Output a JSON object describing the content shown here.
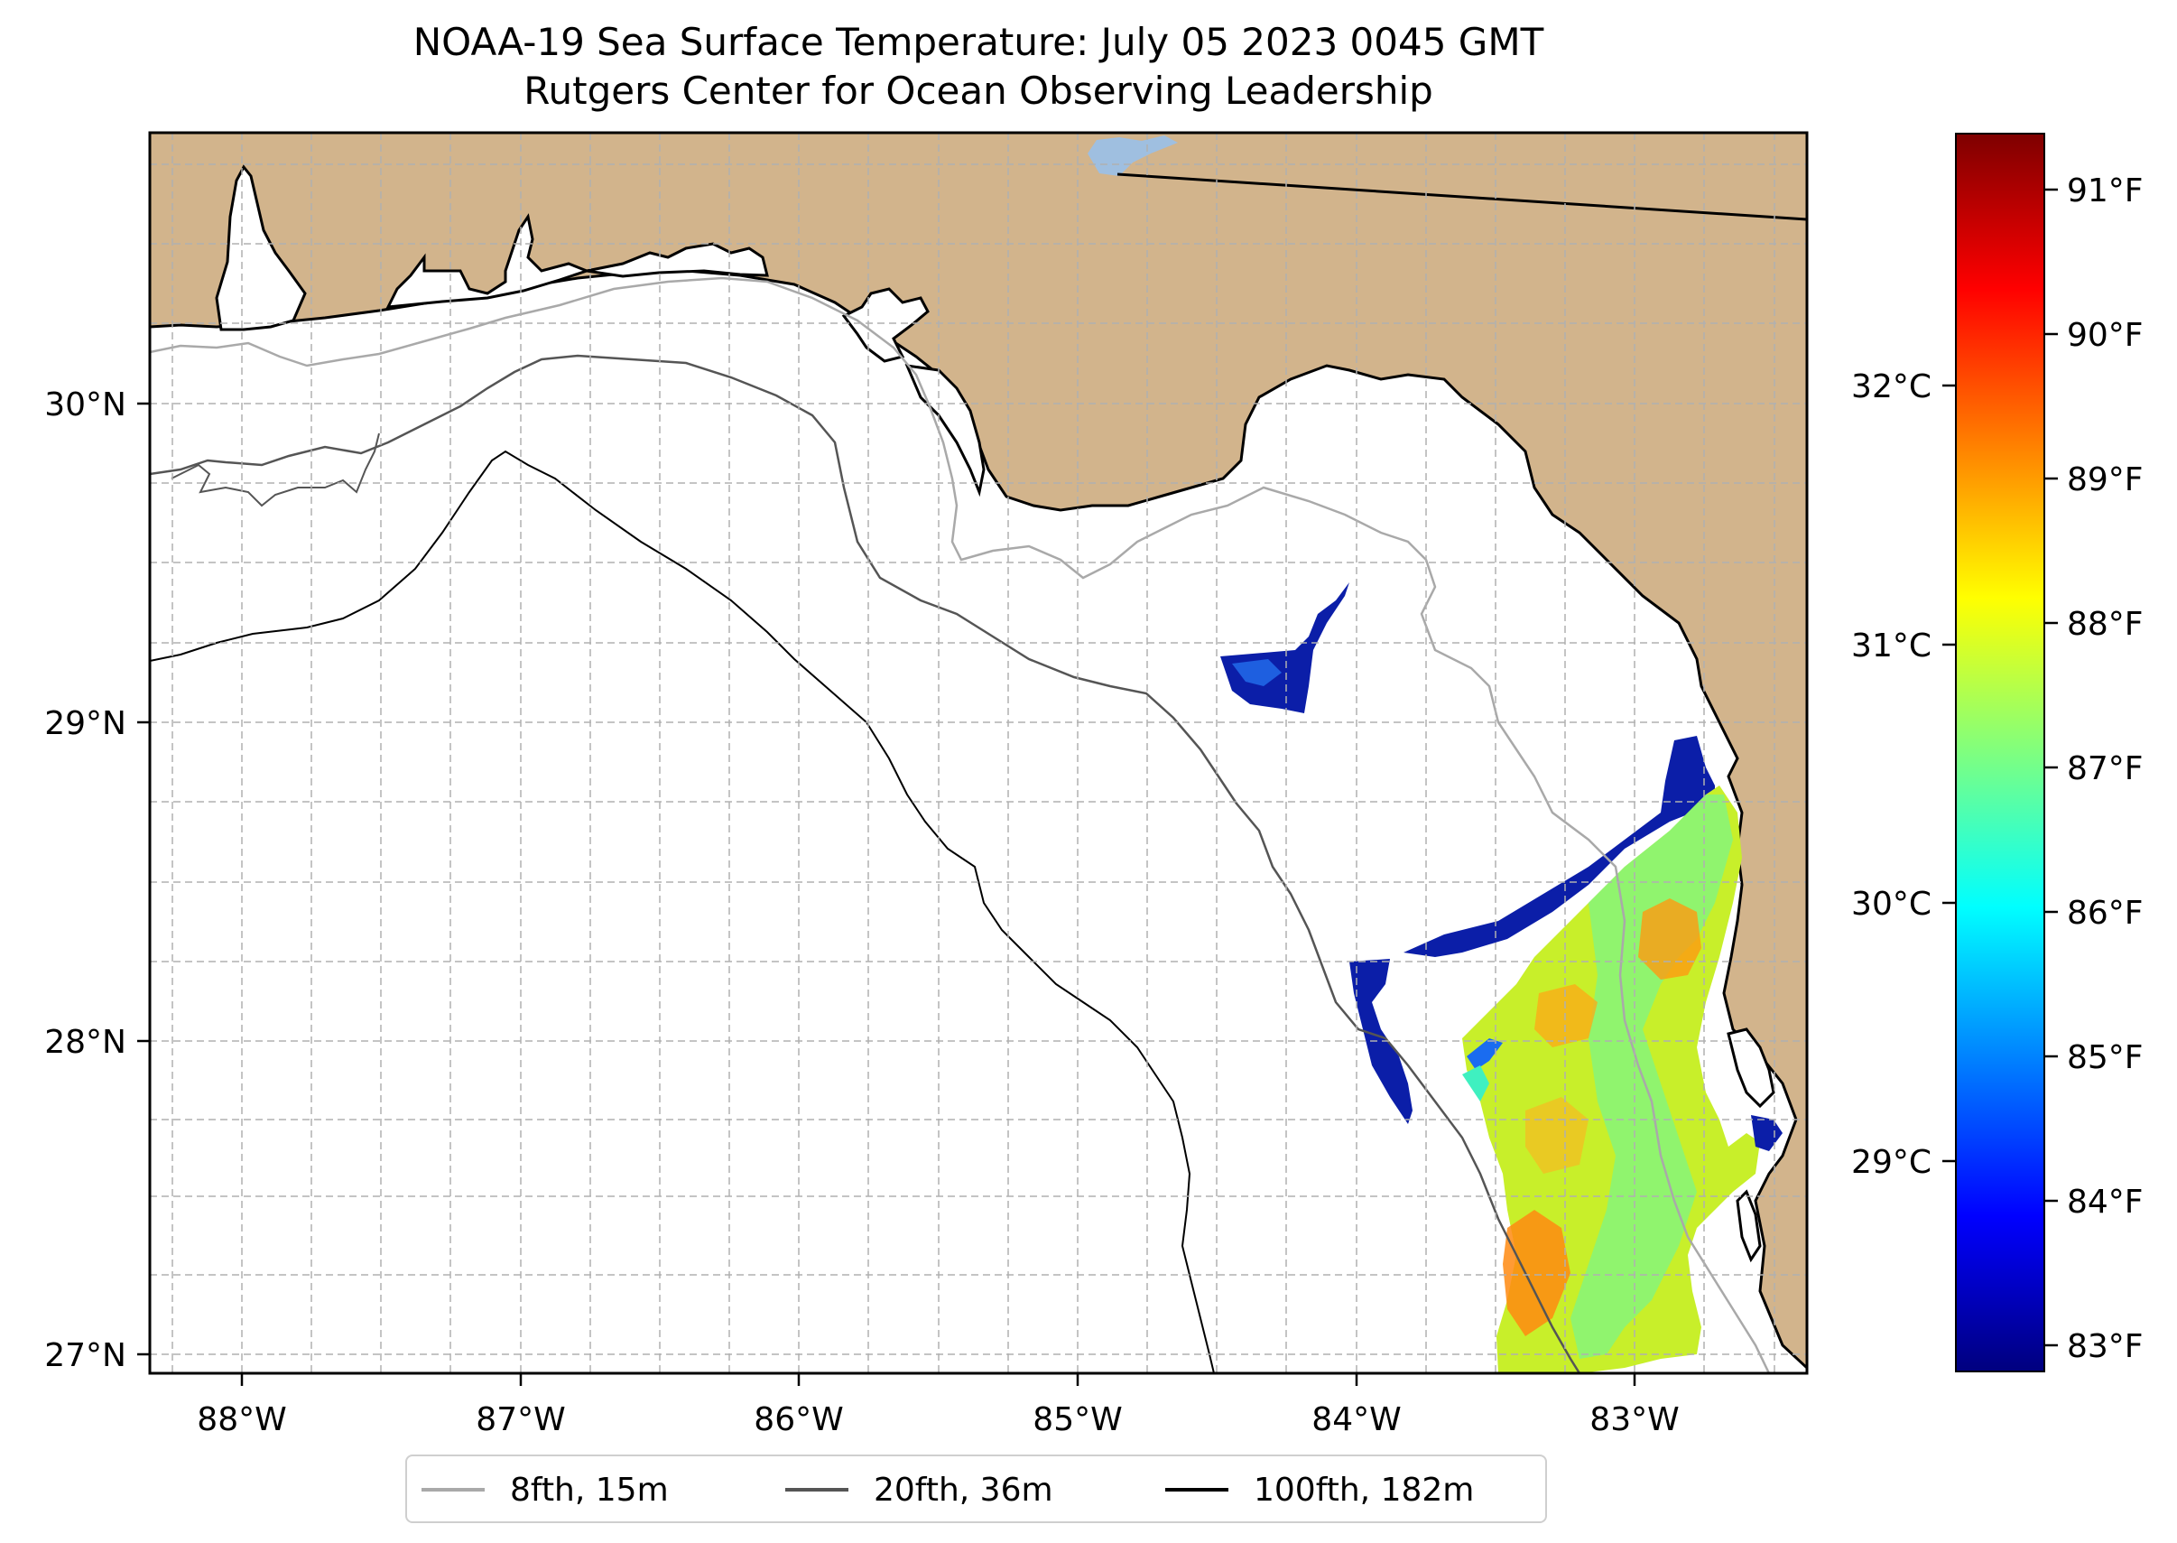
{
  "title": {
    "line1": "NOAA-19 Sea Surface Temperature: July 05 2023 0045 GMT",
    "line2": "Rutgers Center for Ocean Observing Leadership"
  },
  "map": {
    "longitude_ticks": [
      "88°W",
      "87°W",
      "86°W",
      "85°W",
      "84°W",
      "83°W"
    ],
    "latitude_ticks": [
      "30°N",
      "29°N",
      "28°N",
      "27°N"
    ],
    "land_color": "#d2b48c",
    "water_color": "#ffffff",
    "lake_color": "#9fbfe0"
  },
  "legend": {
    "items": [
      {
        "label": "8fth, 15m",
        "color": "#a9a9a9"
      },
      {
        "label": "20fth, 36m",
        "color": "#555555"
      },
      {
        "label": "100fth, 182m",
        "color": "#000000"
      }
    ]
  },
  "colorbar": {
    "colormap": "jet",
    "fahrenheit_ticks": [
      "91°F",
      "90°F",
      "89°F",
      "88°F",
      "87°F",
      "86°F",
      "85°F",
      "84°F",
      "83°F"
    ],
    "celsius_ticks": [
      "32°C",
      "31°C",
      "30°C",
      "29°C"
    ]
  }
}
